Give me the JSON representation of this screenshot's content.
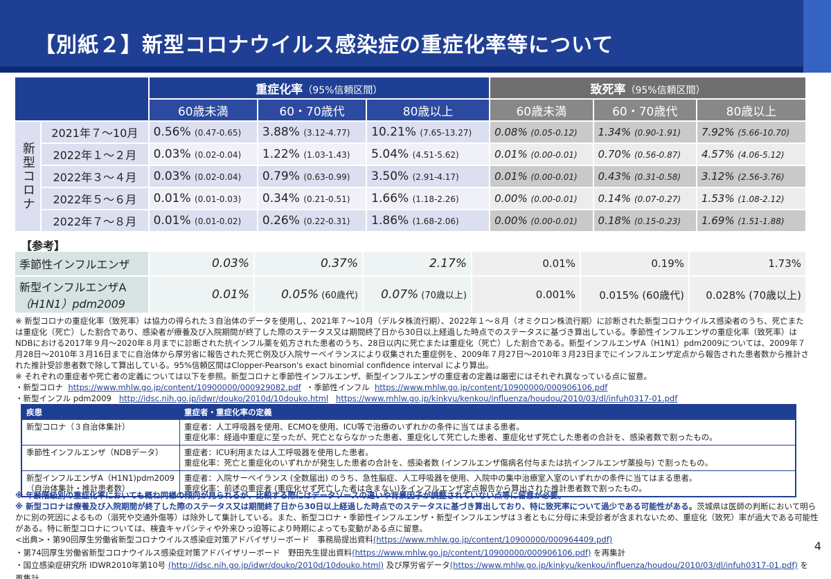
{
  "title": "【別紙２】新型コロナウイルス感染症の重症化率等について",
  "colors": {
    "header_blue": "#1f3f94",
    "header_gray": "#6f6f6f",
    "link_blue": "#1f3f94"
  },
  "headers": {
    "severity": "重症化率",
    "fatality": "致死率",
    "ci_note": "（95%信頼区間）",
    "age_groups": [
      "60歳未満",
      "60・70歳代",
      "80歳以上"
    ]
  },
  "side_label": "新型コロナ",
  "rows": [
    {
      "period": "2021年７～10月",
      "sev": [
        [
          "0.56%",
          "(0.47-0.65)"
        ],
        [
          "3.88%",
          "(3.12-4.77)"
        ],
        [
          "10.21%",
          "(7.65-13.27)"
        ]
      ],
      "fat": [
        [
          "0.08%",
          "(0.05-0.12)"
        ],
        [
          "1.34%",
          "(0.90-1.91)"
        ],
        [
          "7.92%",
          "(5.66-10.70)"
        ]
      ]
    },
    {
      "period": "2022年１～２月",
      "sev": [
        [
          "0.03%",
          "(0.02-0.04)"
        ],
        [
          "1.22%",
          "(1.03-1.43)"
        ],
        [
          "5.04%",
          "(4.51-5.62)"
        ]
      ],
      "fat": [
        [
          "0.01%",
          "(0.00-0.01)"
        ],
        [
          "0.70%",
          "(0.56-0.87)"
        ],
        [
          "4.57%",
          "(4.06-5.12)"
        ]
      ]
    },
    {
      "period": "2022年３～４月",
      "sev": [
        [
          "0.03%",
          "(0.02-0.04)"
        ],
        [
          "0.79%",
          "(0.63-0.99)"
        ],
        [
          "3.50%",
          "(2.91-4.17)"
        ]
      ],
      "fat": [
        [
          "0.01%",
          "(0.00-0.01)"
        ],
        [
          "0.43%",
          "(0.31-0.58)"
        ],
        [
          "3.12%",
          "(2.56-3.76)"
        ]
      ]
    },
    {
      "period": "2022年５～６月",
      "sev": [
        [
          "0.01%",
          "(0.01-0.03)"
        ],
        [
          "0.34%",
          "(0.21-0.51)"
        ],
        [
          "1.66%",
          "(1.18-2.26)"
        ]
      ],
      "fat": [
        [
          "0.00%",
          "(0.00-0.01)"
        ],
        [
          "0.14%",
          "(0.07-0.27)"
        ],
        [
          "1.53%",
          "(1.08-2.12)"
        ]
      ]
    },
    {
      "period": "2022年７～８月",
      "sev": [
        [
          "0.01%",
          "(0.01-0.02)"
        ],
        [
          "0.26%",
          "(0.22-0.31)"
        ],
        [
          "1.86%",
          "(1.68-2.06)"
        ]
      ],
      "fat": [
        [
          "0.00%",
          "(0.00-0.01)"
        ],
        [
          "0.18%",
          "(0.15-0.23)"
        ],
        [
          "1.69%",
          "(1.51-1.88)"
        ]
      ]
    }
  ],
  "reference": {
    "label": "【参考】",
    "seasonal": {
      "name": "季節性インフルエンザ",
      "sev": [
        "0.03%",
        "0.37%",
        "2.17%"
      ],
      "fat": [
        "0.01%",
        "0.19%",
        "1.73%"
      ]
    },
    "h1n1": {
      "name_line1": "新型インフルエンザA",
      "name_line2": "（H1N1）pdm2009",
      "sev": [
        [
          "0.01%",
          ""
        ],
        [
          "0.05%",
          " (60歳代)"
        ],
        [
          "0.07%",
          " (70歳以上)"
        ]
      ],
      "fat": [
        [
          "0.001%",
          ""
        ],
        [
          "0.015%",
          " (60歳代)"
        ],
        [
          "0.028%",
          " (70歳以上)"
        ]
      ]
    }
  },
  "notes": {
    "n1": "※ 新型コロナの重症化率（致死率）は協力の得られた３自治体のデータを使用し、2021年７～10月（デルタ株流行期）、2022年１～８月（オミクロン株流行期）に診断された新型コロナウイルス感染者のうち、死亡または重症化（死亡）した割合であり、感染者が療養及び入院期間が終了した際のステータス又は期間終了日から30日以上経過した時点でのステータスに基づき算出している。季節性インフルエンザの重症化率（致死率）はNDBにおける2017年９月～2020年８月までに診断された抗インフル薬を処方された患者のうち、28日以内に死亡または重症化（死亡）した割合である。新型インフルエンザA（H1N1）pdm2009については、2009年７月28日～2010年３月16日までに自治体から厚労省に報告された死亡例及び入院サーベイランスにより収集された重症例を、2009年７月27日～2010年３月23日までにインフルエンザ定点から報告された患者数から推計された推計受診患者数で除して算出している。95%信頼区間はClopper-Pearson's exact binomial confidence interval により算出。",
    "n2": "※ それぞれの重症者や死亡者の定義については以下を参照。新型コロナと季節性インフルエンザ、新型インフルエンザの重症者の定義は厳密にはそれぞれ異なっている点に留意。",
    "link_corona_label": "・新型コロナ",
    "link_corona_url": "https://www.mhlw.go.jp/content/10900000/000929082.pdf",
    "link_flu_label": "・季節性インフル",
    "link_flu_url": "https://www.mhlw.go.jp/content/10900000/000906106.pdf",
    "link_newflu_label": "・新型インフル pdm2009",
    "link_newflu_url1": "http://idsc.nih.go.jp/idwr/douko/2010d/10douko.html",
    "link_newflu_url2": "https://www.mhlw.go.jp/kinkyu/kenkou/influenza/houdou/2010/03/dl/infuh0317-01.pdf"
  },
  "definitions": {
    "col1": "疾患",
    "col2": "重症者・重症化率の定義",
    "items": [
      {
        "name1": "新型コロナ（３自治体集計）",
        "name2": "",
        "line1": "重症者：人工呼吸器を使用、ECMOを使用、ICU等で治療のいずれかの条件に当てはまる患者。",
        "line2": "重症化率：経過中重症に至ったが、死亡とならなかった患者、重症化して死亡した患者、重症化せず死亡した患者の合計を、感染者数で割ったもの。"
      },
      {
        "name1": "季節性インフルエンザ（NDBデータ）",
        "name2": "",
        "line1": "重症者：ICU利用または人工呼吸器を使用した患者。",
        "line2": "重症化率：死亡と重症化のいずれかが発生した患者の合計を、感染者数 (インフルエンザ傷病名付与または抗インフルエンザ薬投与) で割ったもの。"
      },
      {
        "name1": "新型インフルエンザA（H1N1)pdm2009",
        "name2": "（自治体集計・推計患者数）",
        "line1": "重症者：入院サーベイランス (全数届出) のうち、急性脳症、人工呼吸器を使用、入院中の集中治療室入室のいずれかの条件に当てはまる患者。",
        "line2": "重症化率：前述の重症者 (重症化せず死亡した者は含まない)をインフルエンザ定点報告から算出された推計患者数で割ったもの。"
      }
    ]
  },
  "bottom": {
    "b1": "※ 年齢階級別の重症化率においても概ね同様の傾向が見られるが、比較する際にはデータソースの違いや背景因子が調整されていない点等に留意が必要。",
    "b2_bold": "※ 新型コロナは療養及び入院期間が終了した際のステータス又は期間終了日から30日以上経過した時点でのステータスに基づき算出しており、特に致死率について過少である可能性がある。",
    "b2_rest": "茨城県は医師の判断において明らかに別の死因によるもの（溺死や交通外傷等）は除外して集計している。また、新型コロナ・季節性インフルエンザ・新型インフルエンザは３者ともに分母に未受診者が含まれないため、重症化（致死）率が過大である可能性がある。特に新型コロナについては、検査キャパシティや外来ひっ迫等により時期によっても変動がある点に留意。",
    "src1_text": "<出典>・第90回厚生労働省新型コロナウイルス感染症対策アドバイザリーボード　事務局提出資料",
    "src1_url": "(https://www.mhlw.go.jp/content/10900000/000964409.pdf)",
    "src2_text": "・第74回厚生労働省新型コロナウイルス感染症対策アドバイザリーボード　野田先生提出資料",
    "src2_url": "(https://www.mhlw.go.jp/content/10900000/000906106.pdf)",
    "src2_tail": "を再集計",
    "src3_text": "・国立感染症研究所 IDWR2010年第10号",
    "src3_url1": "(http://idsc.nih.go.jp/idwr/douko/2010d/10douko.html)",
    "src3_mid": "及び厚労省データ",
    "src3_url2": "(https://www.mhlw.go.jp/kinkyu/kenkou/influenza/houdou/2010/03/dl/infuh0317-01.pdf)",
    "src3_tail": "を再集計"
  },
  "page_number": "4"
}
